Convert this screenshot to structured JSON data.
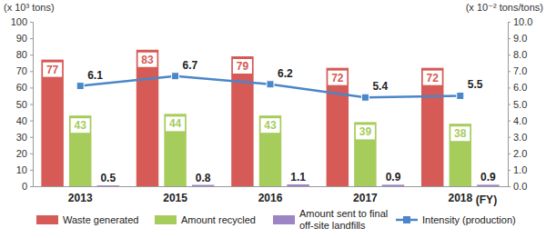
{
  "chart_data": {
    "type": "bar",
    "categories": [
      "2013",
      "2015",
      "2016",
      "2017",
      "2018"
    ],
    "x_label": "(FY)",
    "y_label": "(x 10³ tons)",
    "y2_label": "(x 10⁻² tons/tons)",
    "ylim": [
      0,
      100
    ],
    "yticks": [
      0,
      10,
      20,
      30,
      40,
      50,
      60,
      70,
      80,
      90,
      100
    ],
    "y2lim": [
      0,
      10
    ],
    "y2ticks": [
      {
        "value": 0,
        "label": "0.0"
      },
      {
        "value": 1,
        "label": "1.0"
      },
      {
        "value": 2,
        "label": "2.0"
      },
      {
        "value": 3,
        "label": "3.0"
      },
      {
        "value": 4,
        "label": "4.0"
      },
      {
        "value": 5,
        "label": "5.0"
      },
      {
        "value": 6,
        "label": "6.0"
      },
      {
        "value": 7,
        "label": "7.0"
      },
      {
        "value": 8,
        "label": "8.0"
      },
      {
        "value": 9,
        "label": "9.0"
      },
      {
        "value": 10,
        "label": "10.0"
      }
    ],
    "grid": false,
    "legend": "bottom",
    "data_labels": true,
    "series": [
      {
        "name": "Waste generated",
        "type": "bar",
        "color": "#d65a55",
        "values": [
          77,
          83,
          79,
          72,
          72
        ]
      },
      {
        "name": "Amount recycled",
        "type": "bar",
        "color": "#a6cc5c",
        "values": [
          43,
          44,
          43,
          39,
          38
        ]
      },
      {
        "name": "Amount sent to final off-site landfills",
        "type": "bar",
        "color": "#9d84c4",
        "values": [
          0.5,
          0.8,
          1.1,
          0.9,
          0.9
        ]
      },
      {
        "name": "Intensity (production)",
        "type": "line",
        "axis": "y2",
        "color": "#4a86c8",
        "marker": "square",
        "values": [
          6.1,
          6.7,
          6.2,
          5.4,
          5.5
        ]
      }
    ]
  }
}
